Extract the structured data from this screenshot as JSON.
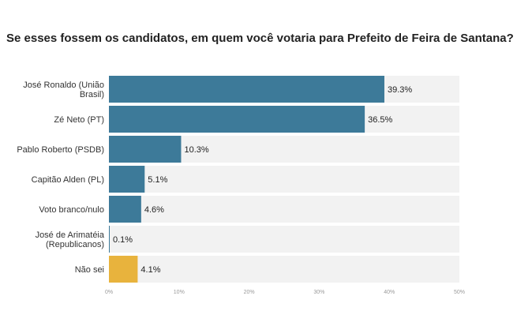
{
  "chart_data": {
    "type": "bar",
    "orientation": "horizontal",
    "title": "Se esses fossem os candidatos, em quem você votaria para Prefeito de Feira de Santana?",
    "categories": [
      "José Ronaldo (União Brasil)",
      "Zé Neto (PT)",
      "Pablo Roberto (PSDB)",
      "Capitão Alden (PL)",
      "Voto branco/nulo",
      "José de Arimatéia (Republicanos)",
      "Não sei"
    ],
    "values": [
      39.3,
      36.5,
      10.3,
      5.1,
      4.6,
      0.1,
      4.1
    ],
    "value_labels": [
      "39.3%",
      "36.5%",
      "10.3%",
      "5.1%",
      "4.6%",
      "0.1%",
      "4.1%"
    ],
    "xlim": [
      0,
      50
    ],
    "ticks": [
      0,
      10,
      20,
      30,
      40,
      50
    ],
    "tick_labels": [
      "0%",
      "10%",
      "20%",
      "30%",
      "40%",
      "50%"
    ],
    "xlabel": "",
    "ylabel": "",
    "grid": false,
    "colors": {
      "bar": "#3d7a99",
      "highlight_bar": "#e8b33d",
      "track": "#f2f2f2"
    },
    "highlight_categories": [
      "Não sei"
    ]
  }
}
